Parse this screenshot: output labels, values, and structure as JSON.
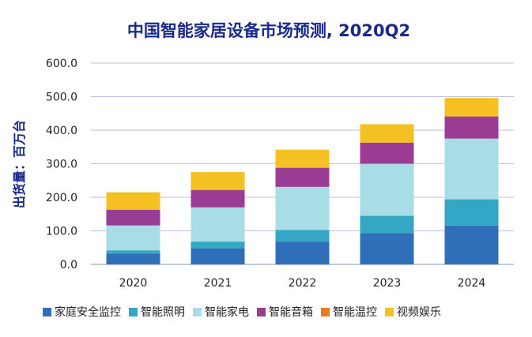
{
  "chart_data": {
    "type": "bar",
    "stacked": true,
    "title": "中国智能家居设备市场预测, 2020Q2",
    "xlabel": "",
    "ylabel": "出货量：百万台",
    "ylim": [
      0,
      600
    ],
    "yticks": [
      "0.0",
      "100.0",
      "200.0",
      "300.0",
      "400.0",
      "500.0",
      "600.0"
    ],
    "grid": true,
    "legend_position": "bottom",
    "categories": [
      "2020",
      "2021",
      "2022",
      "2023",
      "2024"
    ],
    "series": [
      {
        "name": "家庭安全监控",
        "color": "#2f6fba",
        "values": [
          32,
          48,
          68,
          93,
          116
        ]
      },
      {
        "name": "智能照明",
        "color": "#33a7c4",
        "values": [
          10,
          20,
          35,
          52,
          78
        ]
      },
      {
        "name": "智能家电",
        "color": "#a9dde6",
        "values": [
          74,
          102,
          128,
          155,
          181
        ]
      },
      {
        "name": "智能音箱",
        "color": "#9b3d94",
        "values": [
          47,
          52,
          57,
          63,
          66
        ]
      },
      {
        "name": "智能温控",
        "color": "#e97a24",
        "values": [
          0,
          0,
          0,
          0,
          0
        ]
      },
      {
        "name": "视频娱乐",
        "color": "#f5c022",
        "values": [
          52,
          53,
          54,
          55,
          55
        ]
      }
    ]
  }
}
